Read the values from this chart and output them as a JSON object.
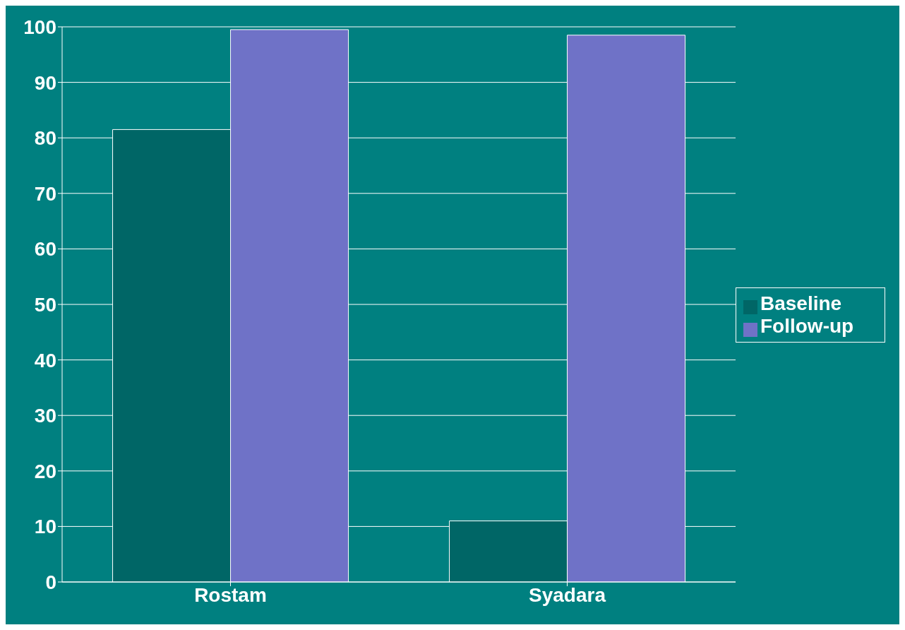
{
  "chart_data": {
    "type": "bar",
    "categories": [
      "Rostam",
      "Syadara"
    ],
    "series": [
      {
        "name": "Baseline",
        "color": "#006666",
        "values": [
          81.5,
          11
        ]
      },
      {
        "name": "Follow-up",
        "color": "#6f72c7",
        "values": [
          99.5,
          98.5
        ]
      }
    ],
    "ylim": [
      0,
      100
    ],
    "yticks": [
      0,
      10,
      20,
      30,
      40,
      50,
      60,
      70,
      80,
      90,
      100
    ],
    "grid": "y",
    "legend": "right"
  }
}
